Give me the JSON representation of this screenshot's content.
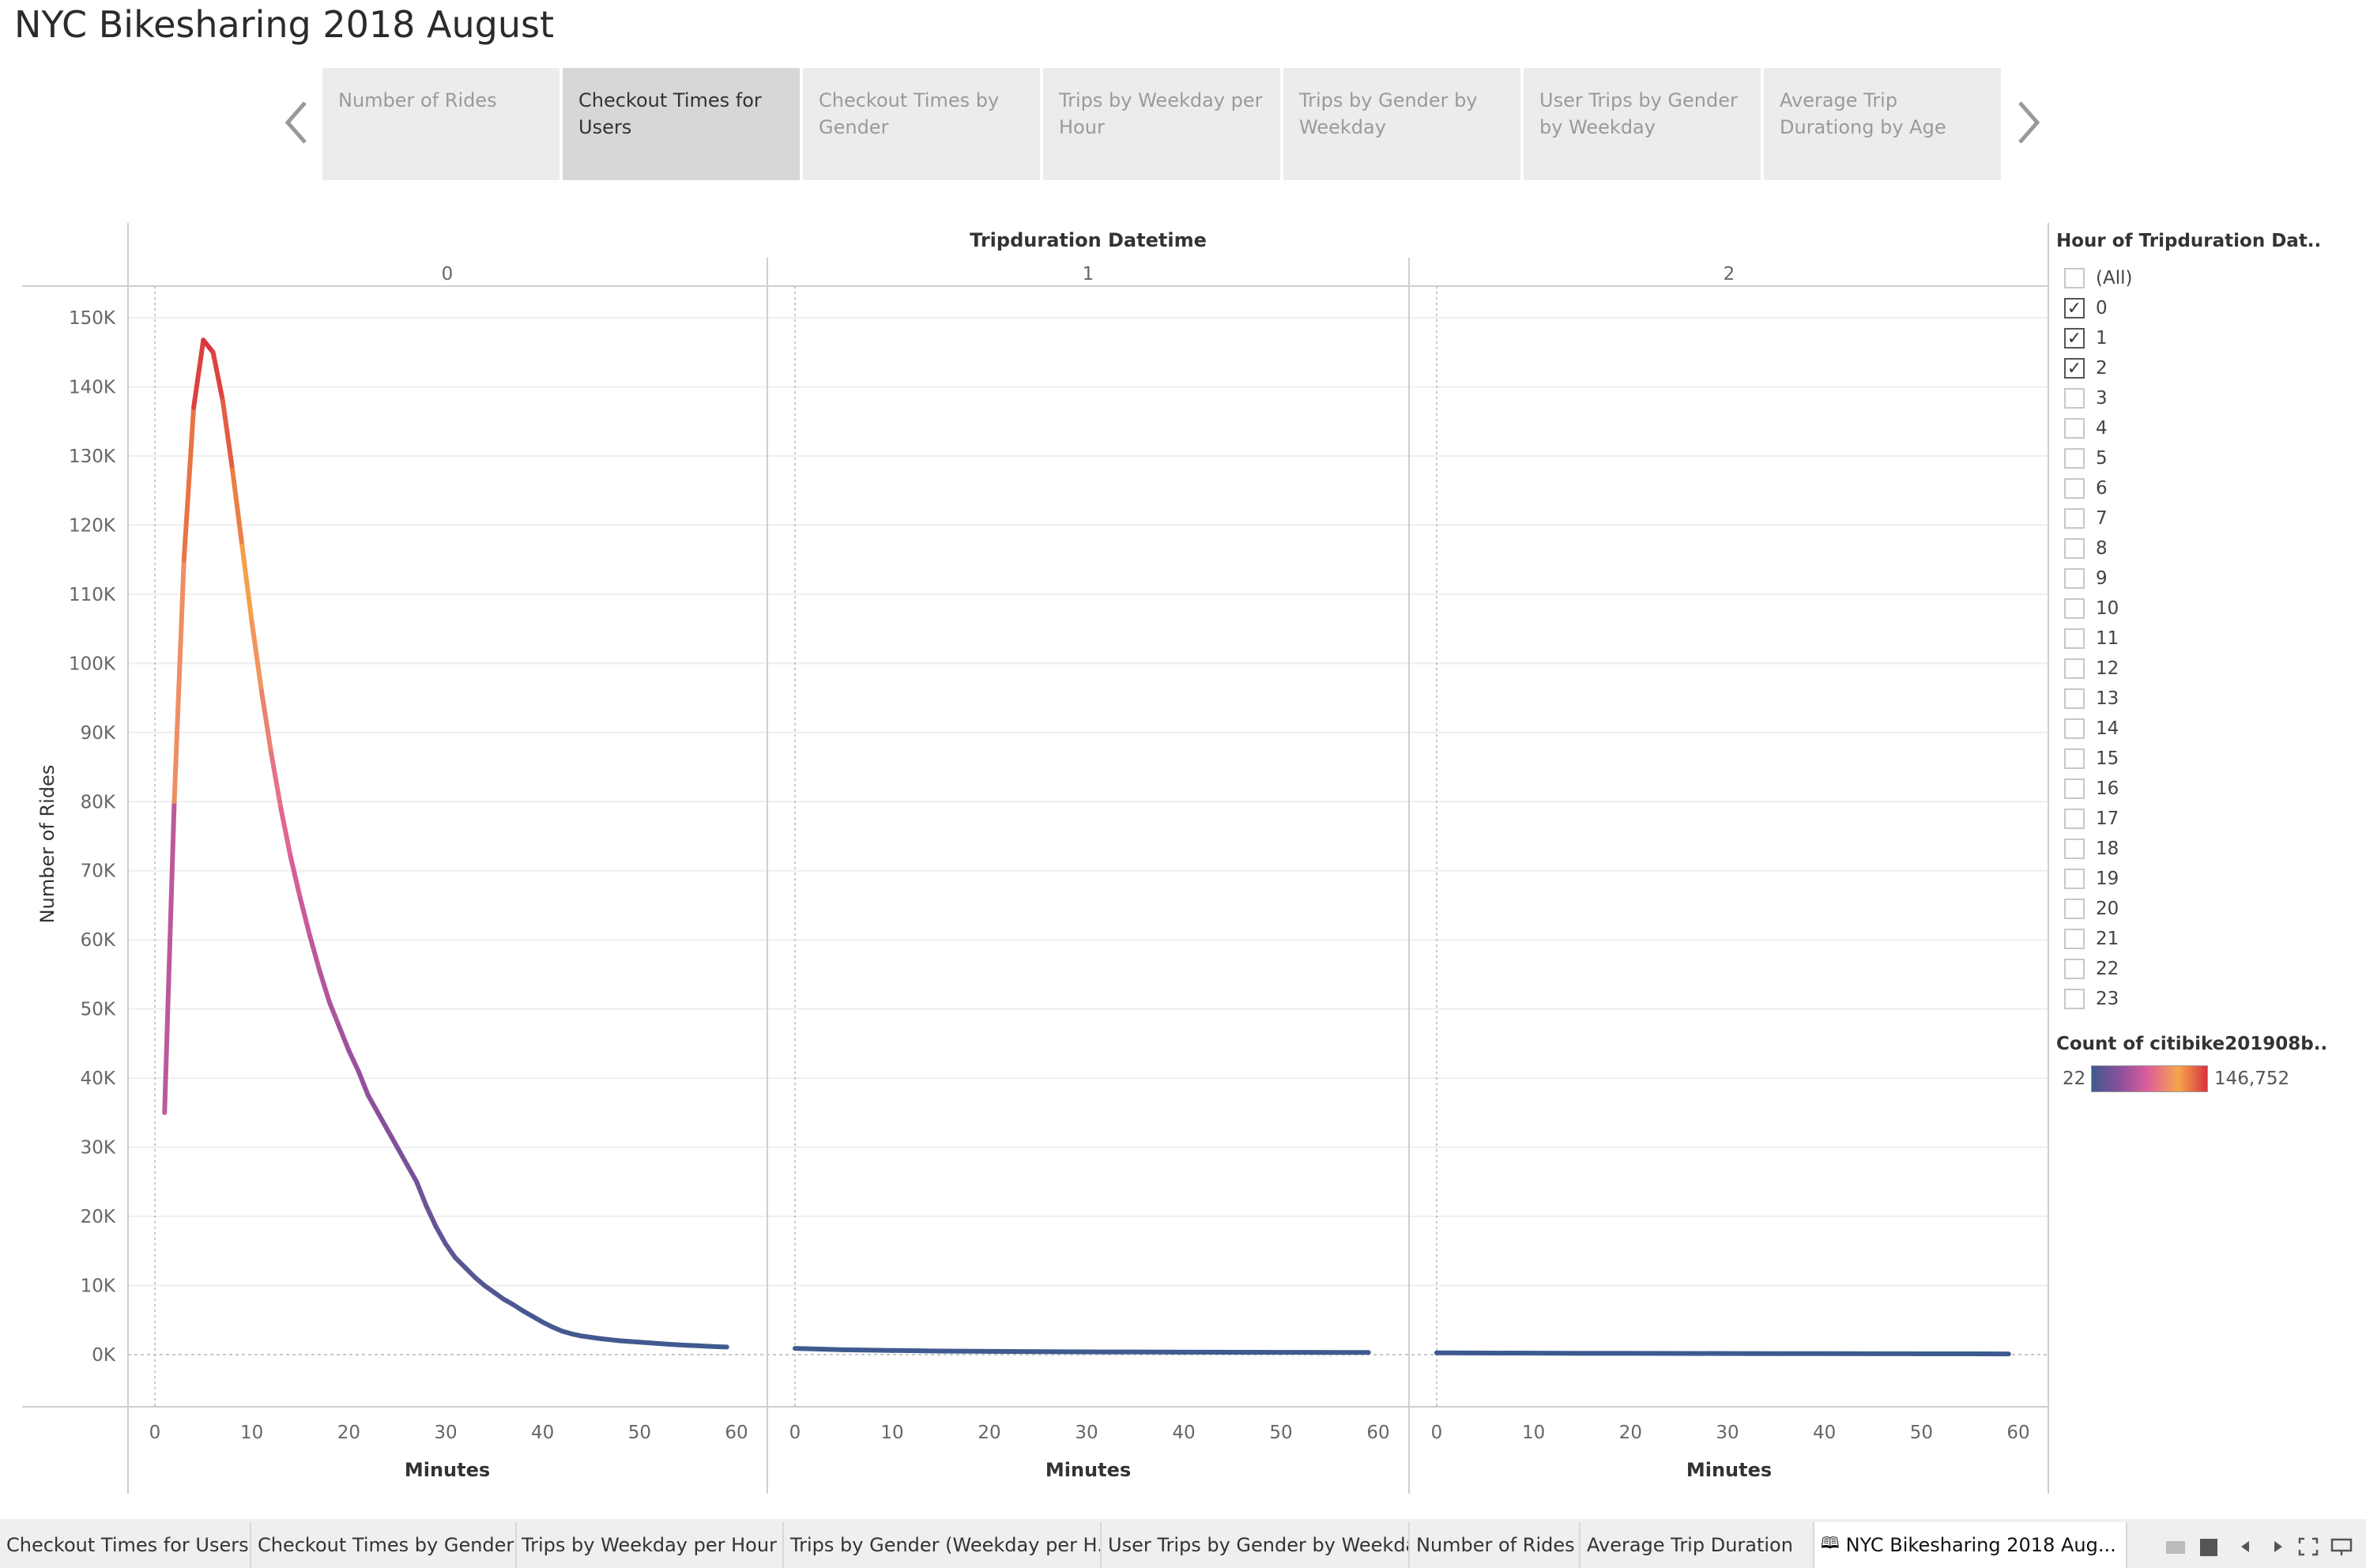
{
  "title": "NYC Bikesharing 2018 August",
  "story_points": [
    {
      "label": "Number of Rides",
      "active": false
    },
    {
      "label": "Checkout Times for Users",
      "active": true
    },
    {
      "label": "Checkout Times by Gender",
      "active": false
    },
    {
      "label": "Trips by Weekday per Hour",
      "active": false
    },
    {
      "label": "Trips by Gender by Weekday",
      "active": false
    },
    {
      "label": "User Trips by Gender by Weekday",
      "active": false
    },
    {
      "label": "Average Trip Durationg by Age",
      "active": false
    }
  ],
  "filter": {
    "title": "Hour of Tripduration Dat..",
    "items": [
      {
        "label": "(All)",
        "checked": false
      },
      {
        "label": "0",
        "checked": true
      },
      {
        "label": "1",
        "checked": true
      },
      {
        "label": "2",
        "checked": true
      },
      {
        "label": "3",
        "checked": false
      },
      {
        "label": "4",
        "checked": false
      },
      {
        "label": "5",
        "checked": false
      },
      {
        "label": "6",
        "checked": false
      },
      {
        "label": "7",
        "checked": false
      },
      {
        "label": "8",
        "checked": false
      },
      {
        "label": "9",
        "checked": false
      },
      {
        "label": "10",
        "checked": false
      },
      {
        "label": "11",
        "checked": false
      },
      {
        "label": "12",
        "checked": false
      },
      {
        "label": "13",
        "checked": false
      },
      {
        "label": "14",
        "checked": false
      },
      {
        "label": "15",
        "checked": false
      },
      {
        "label": "16",
        "checked": false
      },
      {
        "label": "17",
        "checked": false
      },
      {
        "label": "18",
        "checked": false
      },
      {
        "label": "19",
        "checked": false
      },
      {
        "label": "20",
        "checked": false
      },
      {
        "label": "21",
        "checked": false
      },
      {
        "label": "22",
        "checked": false
      },
      {
        "label": "23",
        "checked": false
      }
    ]
  },
  "color_legend": {
    "title": "Count of citibike201908b..",
    "min_label": "22",
    "max_label": "146,752",
    "min": 22,
    "max": 146752,
    "colors": [
      "#3d5a8f",
      "#8e4f9d",
      "#e0609a",
      "#f5a64a",
      "#d8323f"
    ]
  },
  "tabs": [
    {
      "label": "Checkout Times for Users",
      "active": false
    },
    {
      "label": "Checkout Times by Gender",
      "active": false
    },
    {
      "label": "Trips by Weekday per Hour",
      "active": false
    },
    {
      "label": "Trips by Gender (Weekday per H...",
      "active": false
    },
    {
      "label": "User Trips by Gender by Weekday",
      "active": false
    },
    {
      "label": "Number of Rides",
      "active": false
    },
    {
      "label": "Average Trip Duration",
      "active": false
    },
    {
      "label": "NYC Bikesharing 2018 Aug...",
      "active": true
    }
  ],
  "icons": [
    "story-icon",
    "grid-view-icon",
    "presentation-icon",
    "prev-icon",
    "next-icon",
    "fullscreen-icon",
    "device-icon"
  ],
  "chart_data": {
    "type": "line",
    "column_header": "Tripduration Datetime",
    "panels": [
      "0",
      "1",
      "2"
    ],
    "xlabel": "Minutes",
    "ylabel": "Number of Rides",
    "xlim": [
      0,
      60
    ],
    "ylim": [
      0,
      150000
    ],
    "x_ticks": [
      "0",
      "10",
      "20",
      "30",
      "40",
      "50",
      "60"
    ],
    "y_ticks": [
      "0K",
      "10K",
      "20K",
      "30K",
      "40K",
      "50K",
      "60K",
      "70K",
      "80K",
      "90K",
      "100K",
      "110K",
      "120K",
      "130K",
      "140K",
      "150K"
    ],
    "color_scale_min": 22,
    "color_scale_max": 146752,
    "series": [
      {
        "panel": "0",
        "x": [
          1,
          2,
          3,
          4,
          5,
          6,
          7,
          8,
          9,
          10,
          11,
          12,
          13,
          14,
          15,
          16,
          17,
          18,
          19,
          20,
          21,
          22,
          23,
          24,
          25,
          26,
          27,
          28,
          29,
          30,
          31,
          32,
          33,
          34,
          35,
          36,
          37,
          38,
          39,
          40,
          41,
          42,
          43,
          44,
          45,
          46,
          47,
          48,
          49,
          50,
          51,
          52,
          53,
          54,
          55,
          56,
          57,
          58,
          59
        ],
        "values": [
          35000,
          80000,
          115000,
          137000,
          146752,
          145000,
          138000,
          128000,
          117000,
          106000,
          96000,
          87000,
          79000,
          72000,
          66000,
          60500,
          55500,
          51000,
          47500,
          44000,
          41000,
          37500,
          35000,
          32500,
          30000,
          27500,
          25000,
          21500,
          18500,
          16000,
          14000,
          12600,
          11200,
          10000,
          9000,
          8000,
          7200,
          6300,
          5500,
          4700,
          4000,
          3400,
          3000,
          2700,
          2500,
          2300,
          2150,
          2000,
          1900,
          1800,
          1700,
          1600,
          1500,
          1420,
          1350,
          1280,
          1210,
          1150,
          1100
        ]
      },
      {
        "panel": "1",
        "x": [
          0,
          5,
          10,
          15,
          20,
          25,
          30,
          35,
          40,
          45,
          50,
          55,
          59
        ],
        "values": [
          900,
          700,
          600,
          520,
          470,
          430,
          400,
          380,
          360,
          340,
          330,
          320,
          310
        ]
      },
      {
        "panel": "2",
        "x": [
          0,
          5,
          10,
          15,
          20,
          25,
          30,
          35,
          40,
          45,
          50,
          55,
          59
        ],
        "values": [
          260,
          230,
          210,
          190,
          180,
          170,
          160,
          150,
          140,
          130,
          120,
          110,
          100
        ]
      }
    ]
  }
}
